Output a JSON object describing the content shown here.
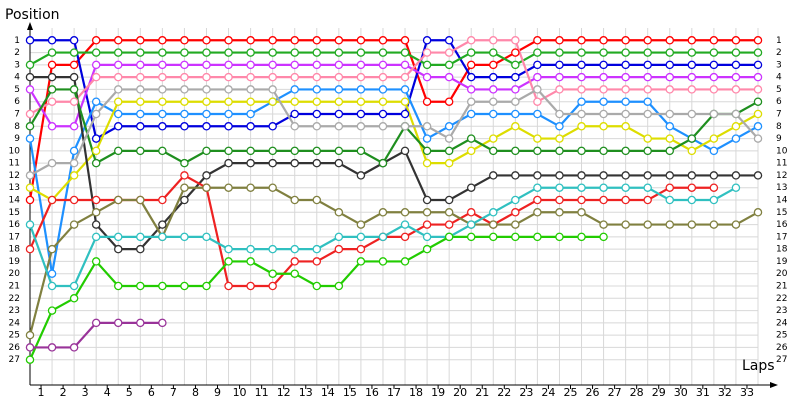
{
  "chart_data": {
    "type": "line",
    "y_label": "Position",
    "x_label": "Laps",
    "x": [
      0,
      1,
      2,
      3,
      4,
      5,
      6,
      7,
      8,
      9,
      10,
      11,
      12,
      13,
      14,
      15,
      16,
      17,
      18,
      19,
      20,
      21,
      22,
      23,
      24,
      25,
      26,
      27,
      28,
      29,
      30,
      31,
      32,
      33
    ],
    "xlim": [
      0,
      33
    ],
    "xticks": [
      1,
      2,
      3,
      4,
      5,
      6,
      7,
      8,
      9,
      10,
      11,
      12,
      13,
      14,
      15,
      16,
      17,
      18,
      19,
      20,
      21,
      22,
      23,
      24,
      25,
      26,
      27,
      28,
      29,
      30,
      31,
      32,
      33
    ],
    "ylim": [
      28,
      0
    ],
    "yticks": [
      1,
      2,
      3,
      4,
      5,
      6,
      7,
      8,
      9,
      10,
      11,
      12,
      13,
      14,
      15,
      16,
      17,
      18,
      19,
      20,
      21,
      22,
      23,
      24,
      25,
      26,
      27
    ],
    "grid": true,
    "series": [
      {
        "color": "#ff0000",
        "values": [
          14,
          3,
          3,
          1,
          1,
          1,
          1,
          1,
          1,
          1,
          1,
          1,
          1,
          1,
          1,
          1,
          1,
          1,
          6,
          6,
          3,
          3,
          2,
          1,
          1,
          1,
          1,
          1,
          1,
          1,
          1,
          1,
          1,
          1
        ]
      },
      {
        "color": "#0000dd",
        "values": [
          1,
          1,
          1,
          9,
          8,
          8,
          8,
          8,
          8,
          8,
          8,
          8,
          7,
          7,
          7,
          7,
          7,
          7,
          1,
          1,
          4,
          4,
          4,
          3,
          3,
          3,
          3,
          3,
          3,
          3,
          3,
          3,
          3,
          3
        ]
      },
      {
        "color": "#22aa22",
        "values": [
          3,
          2,
          2,
          2,
          2,
          2,
          2,
          2,
          2,
          2,
          2,
          2,
          2,
          2,
          2,
          2,
          2,
          2,
          3,
          3,
          2,
          2,
          3,
          2,
          2,
          2,
          2,
          2,
          2,
          2,
          2,
          2,
          2,
          2
        ]
      },
      {
        "color": "#cc33ff",
        "values": [
          5,
          8,
          8,
          3,
          3,
          3,
          3,
          3,
          3,
          3,
          3,
          3,
          3,
          3,
          3,
          3,
          3,
          3,
          4,
          4,
          5,
          5,
          5,
          4,
          4,
          4,
          4,
          4,
          4,
          4,
          4,
          4,
          4,
          4
        ]
      },
      {
        "color": "#ff88aa",
        "values": [
          7,
          6,
          6,
          4,
          4,
          4,
          4,
          4,
          4,
          4,
          4,
          4,
          4,
          4,
          4,
          4,
          4,
          4,
          2,
          2,
          1,
          1,
          1,
          6,
          5,
          5,
          5,
          5,
          5,
          5,
          5,
          5,
          5,
          5
        ]
      },
      {
        "color": "#1e90ff",
        "values": [
          9,
          20,
          10,
          6,
          7,
          7,
          7,
          7,
          7,
          7,
          7,
          6,
          5,
          5,
          5,
          5,
          5,
          5,
          9,
          8,
          7,
          7,
          7,
          7,
          8,
          6,
          6,
          6,
          6,
          8,
          9,
          10,
          9,
          8
        ]
      },
      {
        "color": "#dddd00",
        "values": [
          13,
          14,
          12,
          10,
          6,
          6,
          6,
          6,
          6,
          6,
          6,
          6,
          6,
          6,
          6,
          6,
          6,
          6,
          11,
          11,
          10,
          9,
          8,
          9,
          9,
          8,
          8,
          8,
          9,
          9,
          10,
          9,
          8,
          7
        ]
      },
      {
        "color": "#333333",
        "values": [
          4,
          4,
          4,
          16,
          18,
          18,
          16,
          14,
          12,
          11,
          11,
          11,
          11,
          11,
          11,
          12,
          11,
          10,
          14,
          14,
          13,
          12,
          12,
          12,
          12,
          12,
          12,
          12,
          12,
          12,
          12,
          12,
          12,
          12
        ]
      },
      {
        "color": "#1f8f1f",
        "values": [
          8,
          5,
          5,
          11,
          10,
          10,
          10,
          11,
          10,
          10,
          10,
          10,
          10,
          10,
          10,
          10,
          11,
          8,
          10,
          10,
          9,
          10,
          10,
          10,
          10,
          10,
          10,
          10,
          10,
          10,
          9,
          7,
          7,
          6
        ]
      },
      {
        "color": "#aaaaaa",
        "values": [
          12,
          11,
          11,
          7,
          5,
          5,
          5,
          5,
          5,
          5,
          5,
          5,
          8,
          8,
          8,
          8,
          8,
          8,
          8,
          9,
          6,
          6,
          6,
          5,
          7,
          7,
          7,
          7,
          7,
          7,
          7,
          7,
          7,
          9
        ]
      },
      {
        "color": "#ee2222",
        "values": [
          18,
          14,
          14,
          14,
          14,
          14,
          14,
          12,
          13,
          21,
          21,
          21,
          19,
          19,
          18,
          18,
          17,
          17,
          16,
          16,
          15,
          16,
          15,
          14,
          14,
          14,
          14,
          14,
          14,
          13,
          13,
          13,
          null,
          null
        ]
      },
      {
        "color": "#808040",
        "values": [
          25,
          18,
          16,
          15,
          14,
          14,
          17,
          13,
          13,
          13,
          13,
          13,
          14,
          14,
          15,
          16,
          15,
          15,
          15,
          15,
          16,
          16,
          16,
          15,
          15,
          15,
          16,
          16,
          16,
          16,
          16,
          16,
          16,
          15
        ]
      },
      {
        "color": "#30c0c0",
        "values": [
          16,
          21,
          21,
          17,
          17,
          17,
          17,
          17,
          17,
          18,
          18,
          18,
          18,
          18,
          17,
          17,
          17,
          16,
          17,
          17,
          16,
          15,
          14,
          13,
          13,
          13,
          13,
          13,
          13,
          14,
          14,
          14,
          13,
          null
        ]
      },
      {
        "color": "#22cc00",
        "values": [
          27,
          23,
          22,
          19,
          21,
          21,
          21,
          21,
          21,
          19,
          19,
          20,
          20,
          21,
          21,
          19,
          19,
          19,
          18,
          17,
          17,
          17,
          17,
          17,
          17,
          17,
          17,
          null,
          null,
          null,
          null,
          null,
          null,
          null
        ]
      },
      {
        "color": "#993399",
        "values": [
          26,
          26,
          26,
          24,
          24,
          24,
          24,
          null,
          null,
          null,
          null,
          null,
          null,
          null,
          null,
          null,
          null,
          null,
          null,
          null,
          null,
          null,
          null,
          null,
          null,
          null,
          null,
          null,
          null,
          null,
          null,
          null,
          null,
          null
        ]
      }
    ]
  }
}
